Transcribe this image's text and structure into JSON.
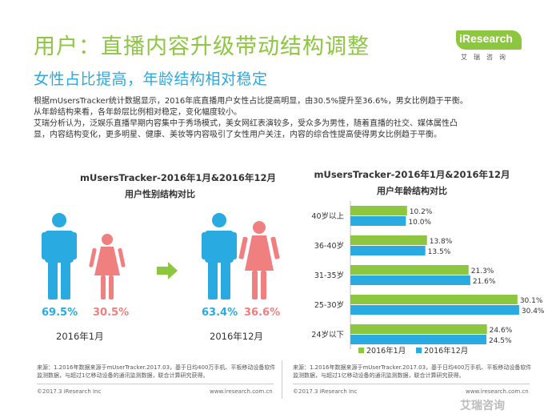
{
  "title": "用户：直播内容升级带动结构调整",
  "subtitle": "女性占比提高，年龄结构相对稳定",
  "logo": {
    "name": "iResearch",
    "sub": "艾瑞咨询"
  },
  "intro": [
    "根据mUsersTracker统计数据显示，2016年底直播用户女性占比提高明显，由30.5%提升至36.6%，男女比例趋于平衡。",
    "从年龄结构来看，各年龄层比例相对稳定，变化幅度较小。",
    "艾瑞分析认为，泛娱乐直播早期内容集中于秀场模式，美女网红表演较多，受众多为男性，随着直播的社交、媒体属性凸",
    "显，内容结构变化，更多明星、健康、美妆等内容吸引了女性用户关注，内容的综合性提高使得男女比例趋于平衡。"
  ],
  "gender": {
    "title1": "mUsersTracker-2016年1月&2016年12月",
    "title2": "用户性别结构对比",
    "periods": [
      {
        "date": "2016年1月",
        "male": "69.5%",
        "female": "30.5%"
      },
      {
        "date": "2016年12月",
        "male": "63.4%",
        "female": "36.6%"
      }
    ],
    "colors": {
      "male": "#29abe2",
      "female": "#f08080"
    }
  },
  "chart_data": {
    "type": "bar",
    "orientation": "horizontal",
    "title": "mUsersTracker-2016年1月&2016年12月",
    "subtitle": "用户年龄结构对比",
    "categories": [
      "40岁以上",
      "36-40岁",
      "31-35岁",
      "25-30岁",
      "24岁以下"
    ],
    "series": [
      {
        "name": "2016年1月",
        "color": "#8dc63f",
        "values": [
          10.2,
          13.8,
          21.3,
          30.1,
          24.6
        ],
        "labels": [
          "10.2%",
          "13.8%",
          "21.3%",
          "30.1%",
          "24.6%"
        ]
      },
      {
        "name": "2016年12月",
        "color": "#29abe2",
        "values": [
          10.0,
          13.5,
          21.6,
          30.4,
          24.5
        ],
        "labels": [
          "10.0%",
          "13.5%",
          "21.6%",
          "30.4%",
          "24.5%"
        ]
      }
    ],
    "xlim": [
      0,
      32
    ],
    "legend": "bottom",
    "grid": false
  },
  "source_left": "来源：1.2016年数据来源于mUserTracker.2017.03，基于日均400万手机、平板移动设备软件监测数据，与超过1亿移动设备的通讯监测数据，联合计算研究获得。",
  "source_right": "来源：1.2016年数据来源于mUserTracker.2017.03，基于日均400万手机、平板移动设备软件监测数据，与超过1亿移动设备的通讯监测数据，联合计算研究获得。",
  "copyright_left": "©2017.3 iResearch Inc",
  "website_left": "www.iresearch.com.cn",
  "copyright_right": "©2017.3 iResearch Inc",
  "website_right": "www.iresearch.com.cn",
  "watermark": "艾瑞咨询"
}
